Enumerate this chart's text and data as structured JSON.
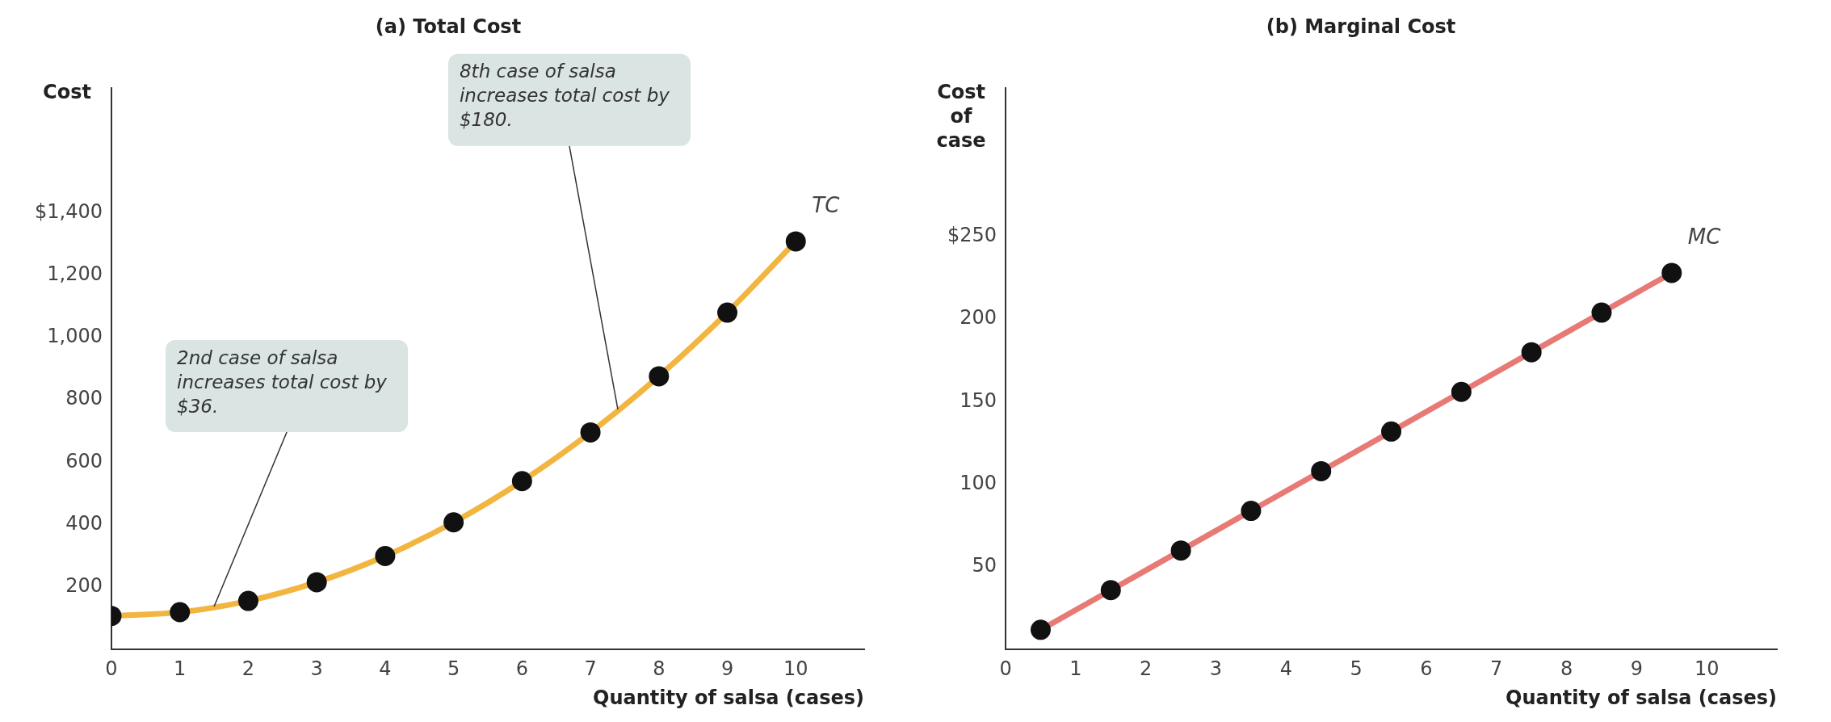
{
  "chart_data": [
    {
      "type": "line",
      "title": "(a) Total Cost",
      "xlabel": "Quantity of salsa (cases)",
      "ylabel": "Cost",
      "xlim": [
        0,
        11
      ],
      "ylim": [
        0,
        1800
      ],
      "xticks": [
        0,
        1,
        2,
        3,
        4,
        5,
        6,
        7,
        8,
        9,
        10
      ],
      "yticks": [
        200,
        400,
        600,
        800,
        {
          "value": 1000,
          "label": "1,000"
        },
        {
          "value": 1200,
          "label": "1,200"
        },
        {
          "value": 1400,
          "label": "$1,400"
        }
      ],
      "series": [
        {
          "name": "TC",
          "color": "#f2b540",
          "x": [
            0,
            1,
            2,
            3,
            4,
            5,
            6,
            7,
            8,
            9,
            10
          ],
          "values": [
            108,
            120,
            156,
            216,
            300,
            408,
            540,
            696,
            876,
            1080,
            1308
          ]
        }
      ],
      "marker": "circle",
      "grid": false,
      "legend": false,
      "annotations": [
        {
          "text": "2nd case of salsa increases total cost by $36.",
          "x": 1.5,
          "y": 138
        },
        {
          "text": "8th case of salsa increases total cost by $180.",
          "x": 7.4,
          "y": 770
        }
      ]
    },
    {
      "type": "line",
      "title": "(b) Marginal Cost",
      "xlabel": "Quantity of salsa (cases)",
      "ylabel": "Cost of case",
      "xlim": [
        0,
        11
      ],
      "ylim": [
        0,
        340
      ],
      "xticks": [
        0,
        1,
        2,
        3,
        4,
        5,
        6,
        7,
        8,
        9,
        10
      ],
      "yticks": [
        50,
        100,
        150,
        200,
        {
          "value": 250,
          "label": "$250"
        }
      ],
      "series": [
        {
          "name": "MC",
          "color": "#e87a76",
          "x": [
            0.5,
            1.5,
            2.5,
            3.5,
            4.5,
            5.5,
            6.5,
            7.5,
            8.5,
            9.5
          ],
          "values": [
            12,
            36,
            60,
            84,
            108,
            132,
            156,
            180,
            204,
            228
          ]
        }
      ],
      "marker": "circle",
      "grid": false,
      "legend": false
    }
  ]
}
